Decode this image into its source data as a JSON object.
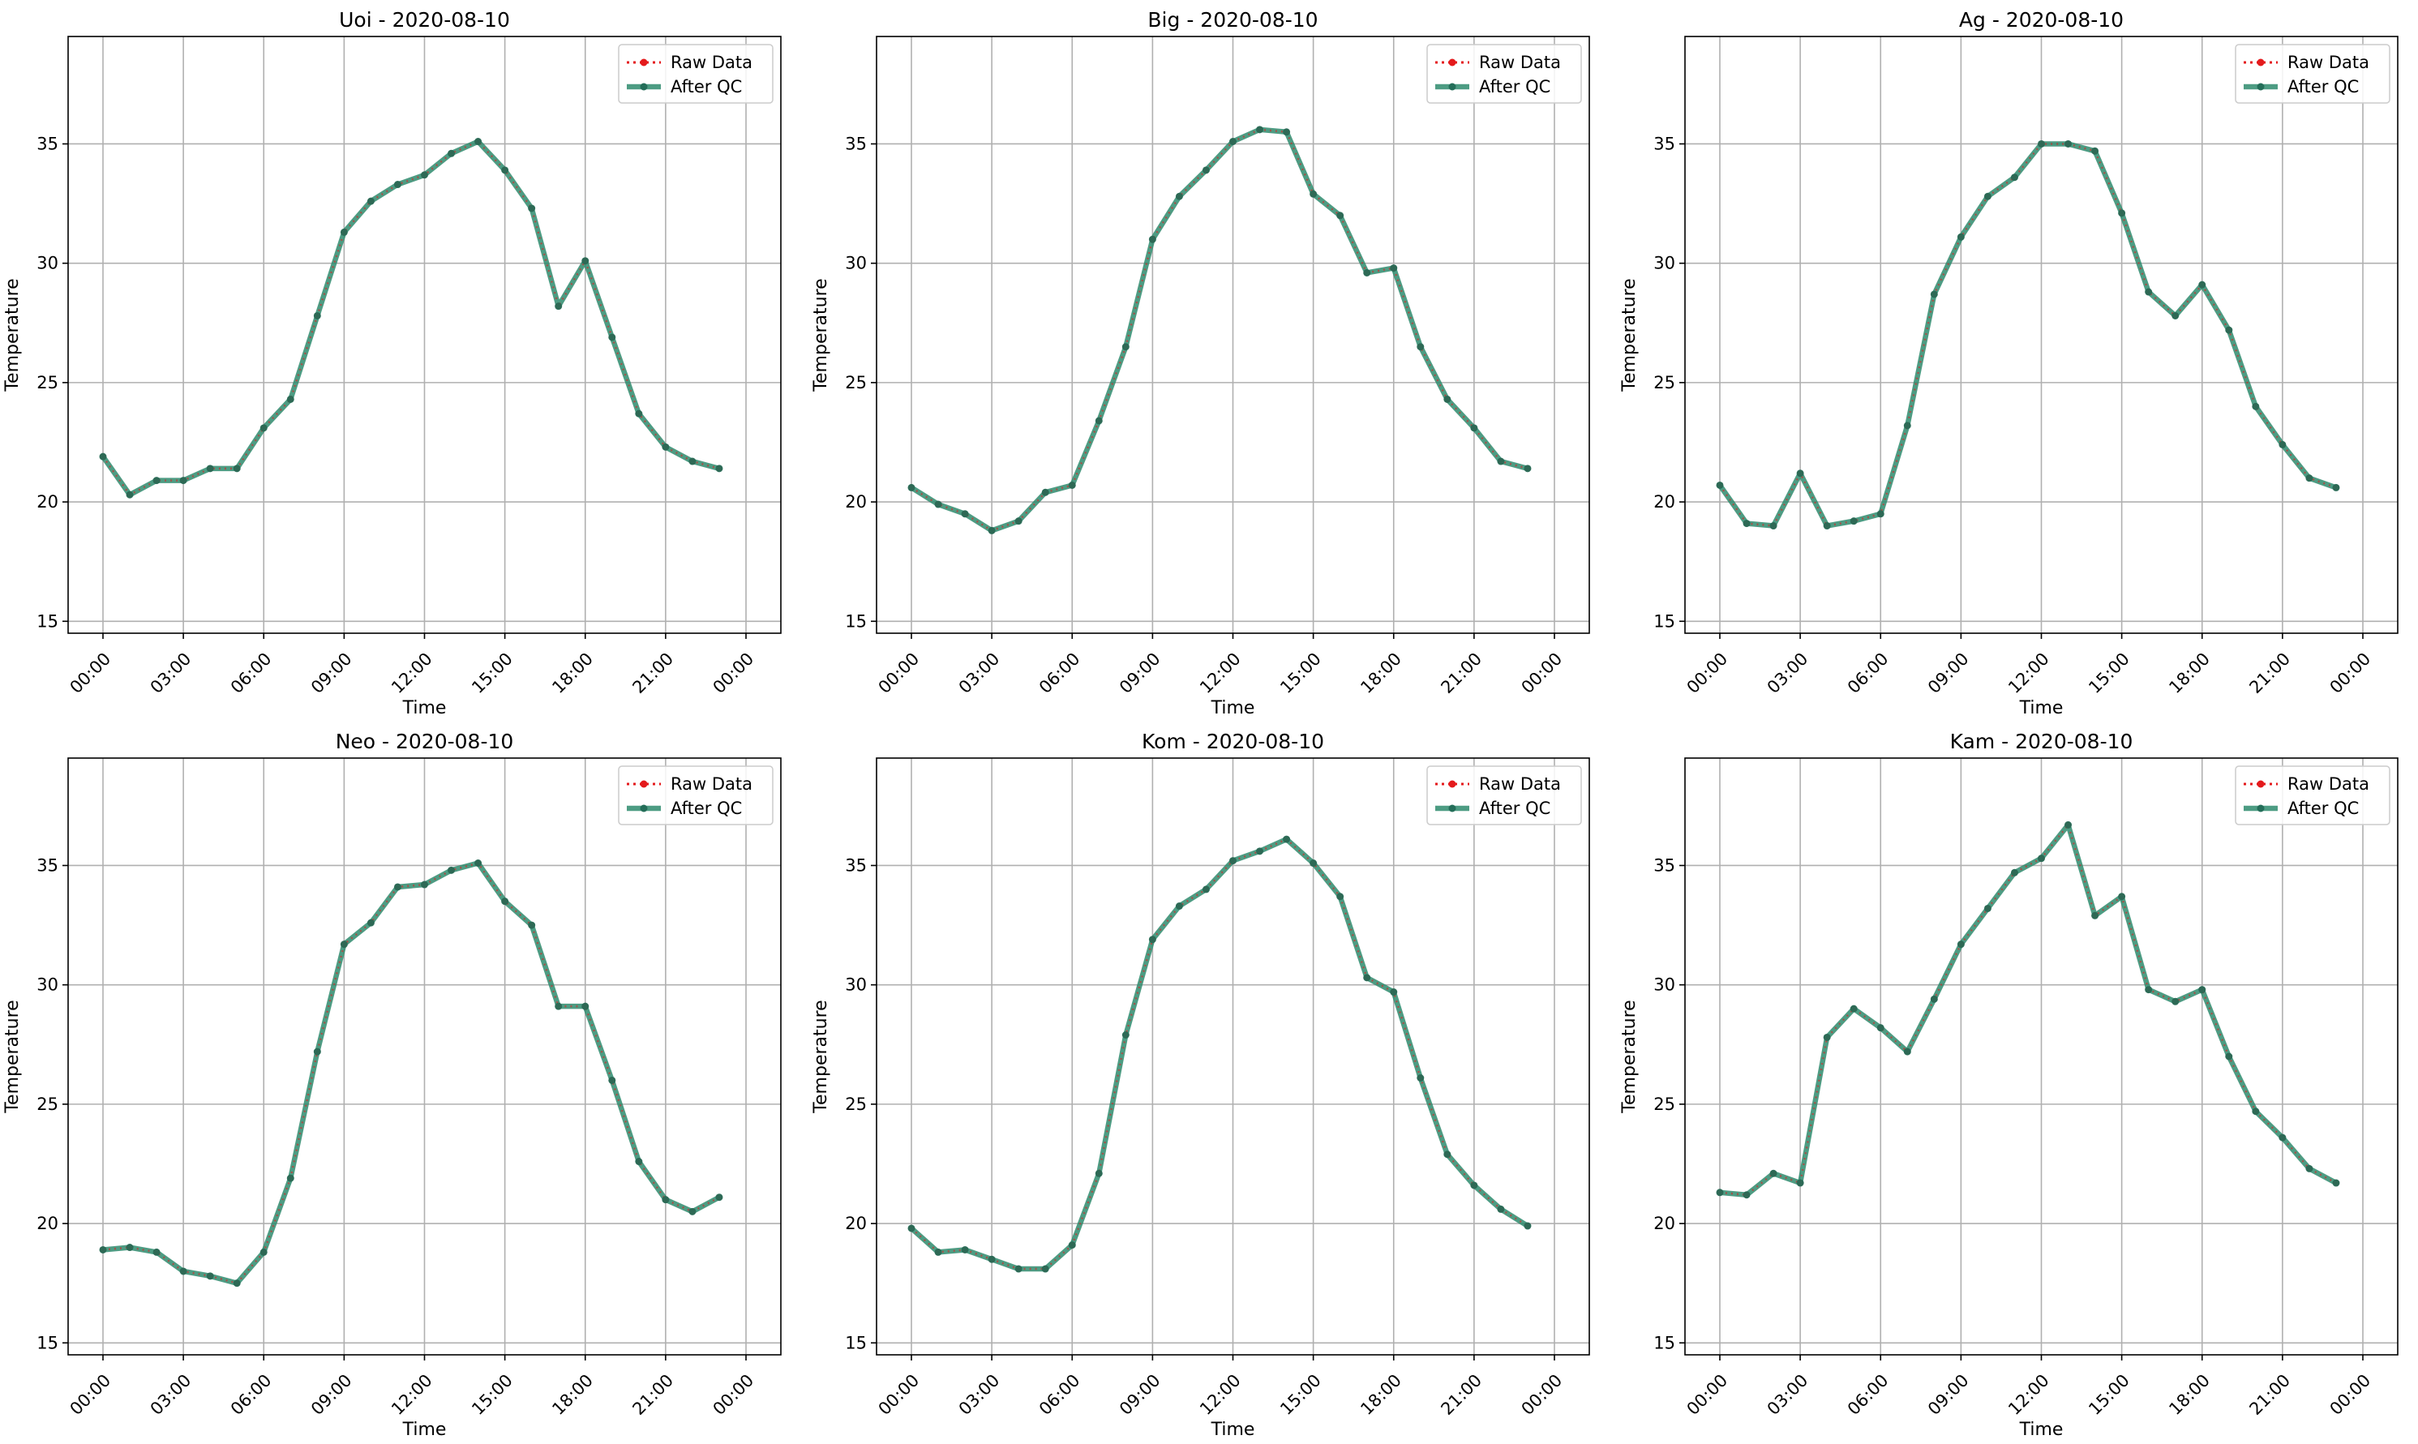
{
  "legend": {
    "raw_label": "Raw Data",
    "qc_label": "After QC"
  },
  "colors": {
    "raw": "#e41a1c",
    "qc": "#2e8b6d",
    "grid": "#b0b0b0"
  },
  "chart_data": [
    {
      "type": "line",
      "title": "Uoi - 2020-08-10",
      "xlabel": "Time",
      "ylabel": "Temperature",
      "x": [
        "00:00",
        "01:00",
        "02:00",
        "03:00",
        "04:00",
        "05:00",
        "06:00",
        "07:00",
        "08:00",
        "09:00",
        "10:00",
        "11:00",
        "12:00",
        "13:00",
        "14:00",
        "15:00",
        "16:00",
        "17:00",
        "18:00",
        "19:00",
        "20:00",
        "21:00",
        "22:00",
        "23:00"
      ],
      "xticks": [
        "00:00",
        "03:00",
        "06:00",
        "09:00",
        "12:00",
        "15:00",
        "18:00",
        "21:00",
        "00:00"
      ],
      "yticks": [
        15,
        20,
        25,
        30,
        35
      ],
      "ylim": [
        14.5,
        39.5
      ],
      "grid": true,
      "legend_position": "upper right",
      "series": [
        {
          "name": "Raw Data",
          "values": [
            21.9,
            20.3,
            20.9,
            20.9,
            21.4,
            21.4,
            23.1,
            24.3,
            27.8,
            31.3,
            32.6,
            33.3,
            33.7,
            34.6,
            35.1,
            33.9,
            32.3,
            28.2,
            30.1,
            26.9,
            23.7,
            22.3,
            21.7,
            21.4
          ]
        },
        {
          "name": "After QC",
          "values": [
            21.9,
            20.3,
            20.9,
            20.9,
            21.4,
            21.4,
            23.1,
            24.3,
            27.8,
            31.3,
            32.6,
            33.3,
            33.7,
            34.6,
            35.1,
            33.9,
            32.3,
            28.2,
            30.1,
            26.9,
            23.7,
            22.3,
            21.7,
            21.4
          ]
        }
      ]
    },
    {
      "type": "line",
      "title": "Big - 2020-08-10",
      "xlabel": "Time",
      "ylabel": "Temperature",
      "x": [
        "00:00",
        "01:00",
        "02:00",
        "03:00",
        "04:00",
        "05:00",
        "06:00",
        "07:00",
        "08:00",
        "09:00",
        "10:00",
        "11:00",
        "12:00",
        "13:00",
        "14:00",
        "15:00",
        "16:00",
        "17:00",
        "18:00",
        "19:00",
        "20:00",
        "21:00",
        "22:00",
        "23:00"
      ],
      "xticks": [
        "00:00",
        "03:00",
        "06:00",
        "09:00",
        "12:00",
        "15:00",
        "18:00",
        "21:00",
        "00:00"
      ],
      "yticks": [
        15,
        20,
        25,
        30,
        35
      ],
      "ylim": [
        14.5,
        39.5
      ],
      "grid": true,
      "legend_position": "upper right",
      "series": [
        {
          "name": "Raw Data",
          "values": [
            20.6,
            19.9,
            19.5,
            18.8,
            19.2,
            20.4,
            20.7,
            23.4,
            26.5,
            31.0,
            32.8,
            33.9,
            35.1,
            35.6,
            35.5,
            32.9,
            32.0,
            29.6,
            29.8,
            26.5,
            24.3,
            23.1,
            21.7,
            21.4
          ]
        },
        {
          "name": "After QC",
          "values": [
            20.6,
            19.9,
            19.5,
            18.8,
            19.2,
            20.4,
            20.7,
            23.4,
            26.5,
            31.0,
            32.8,
            33.9,
            35.1,
            35.6,
            35.5,
            32.9,
            32.0,
            29.6,
            29.8,
            26.5,
            24.3,
            23.1,
            21.7,
            21.4
          ]
        }
      ]
    },
    {
      "type": "line",
      "title": "Ag - 2020-08-10",
      "xlabel": "Time",
      "ylabel": "Temperature",
      "x": [
        "00:00",
        "01:00",
        "02:00",
        "03:00",
        "04:00",
        "05:00",
        "06:00",
        "07:00",
        "08:00",
        "09:00",
        "10:00",
        "11:00",
        "12:00",
        "13:00",
        "14:00",
        "15:00",
        "16:00",
        "17:00",
        "18:00",
        "19:00",
        "20:00",
        "21:00",
        "22:00",
        "23:00"
      ],
      "xticks": [
        "00:00",
        "03:00",
        "06:00",
        "09:00",
        "12:00",
        "15:00",
        "18:00",
        "21:00",
        "00:00"
      ],
      "yticks": [
        15,
        20,
        25,
        30,
        35
      ],
      "ylim": [
        14.5,
        39.5
      ],
      "grid": true,
      "legend_position": "upper right",
      "series": [
        {
          "name": "Raw Data",
          "values": [
            20.7,
            19.1,
            19.0,
            21.2,
            19.0,
            19.2,
            19.5,
            23.2,
            28.7,
            31.1,
            32.8,
            33.6,
            35.0,
            35.0,
            34.7,
            32.1,
            28.8,
            27.8,
            29.1,
            27.2,
            24.0,
            22.4,
            21.0,
            20.6
          ]
        },
        {
          "name": "After QC",
          "values": [
            20.7,
            19.1,
            19.0,
            21.2,
            19.0,
            19.2,
            19.5,
            23.2,
            28.7,
            31.1,
            32.8,
            33.6,
            35.0,
            35.0,
            34.7,
            32.1,
            28.8,
            27.8,
            29.1,
            27.2,
            24.0,
            22.4,
            21.0,
            20.6
          ]
        }
      ]
    },
    {
      "type": "line",
      "title": "Neo - 2020-08-10",
      "xlabel": "Time",
      "ylabel": "Temperature",
      "x": [
        "00:00",
        "01:00",
        "02:00",
        "03:00",
        "04:00",
        "05:00",
        "06:00",
        "07:00",
        "08:00",
        "09:00",
        "10:00",
        "11:00",
        "12:00",
        "13:00",
        "14:00",
        "15:00",
        "16:00",
        "17:00",
        "18:00",
        "19:00",
        "20:00",
        "21:00",
        "22:00",
        "23:00"
      ],
      "xticks": [
        "00:00",
        "03:00",
        "06:00",
        "09:00",
        "12:00",
        "15:00",
        "18:00",
        "21:00",
        "00:00"
      ],
      "yticks": [
        15,
        20,
        25,
        30,
        35
      ],
      "ylim": [
        14.5,
        39.5
      ],
      "grid": true,
      "legend_position": "upper right",
      "series": [
        {
          "name": "Raw Data",
          "values": [
            18.9,
            19.0,
            18.8,
            18.0,
            17.8,
            17.5,
            18.8,
            21.9,
            27.2,
            31.7,
            32.6,
            34.1,
            34.2,
            34.8,
            35.1,
            33.5,
            32.5,
            29.1,
            29.1,
            26.0,
            22.6,
            21.0,
            20.5,
            21.1
          ]
        },
        {
          "name": "After QC",
          "values": [
            18.9,
            19.0,
            18.8,
            18.0,
            17.8,
            17.5,
            18.8,
            21.9,
            27.2,
            31.7,
            32.6,
            34.1,
            34.2,
            34.8,
            35.1,
            33.5,
            32.5,
            29.1,
            29.1,
            26.0,
            22.6,
            21.0,
            20.5,
            21.1
          ]
        }
      ]
    },
    {
      "type": "line",
      "title": "Kom - 2020-08-10",
      "xlabel": "Time",
      "ylabel": "Temperature",
      "x": [
        "00:00",
        "01:00",
        "02:00",
        "03:00",
        "04:00",
        "05:00",
        "06:00",
        "07:00",
        "08:00",
        "09:00",
        "10:00",
        "11:00",
        "12:00",
        "13:00",
        "14:00",
        "15:00",
        "16:00",
        "17:00",
        "18:00",
        "19:00",
        "20:00",
        "21:00",
        "22:00",
        "23:00"
      ],
      "xticks": [
        "00:00",
        "03:00",
        "06:00",
        "09:00",
        "12:00",
        "15:00",
        "18:00",
        "21:00",
        "00:00"
      ],
      "yticks": [
        15,
        20,
        25,
        30,
        35
      ],
      "ylim": [
        14.5,
        39.5
      ],
      "grid": true,
      "legend_position": "upper right",
      "series": [
        {
          "name": "Raw Data",
          "values": [
            19.8,
            18.8,
            18.9,
            18.5,
            18.1,
            18.1,
            19.1,
            22.1,
            27.9,
            31.9,
            33.3,
            34.0,
            35.2,
            35.6,
            36.1,
            35.1,
            33.7,
            30.3,
            29.7,
            26.1,
            22.9,
            21.6,
            20.6,
            19.9
          ]
        },
        {
          "name": "After QC",
          "values": [
            19.8,
            18.8,
            18.9,
            18.5,
            18.1,
            18.1,
            19.1,
            22.1,
            27.9,
            31.9,
            33.3,
            34.0,
            35.2,
            35.6,
            36.1,
            35.1,
            33.7,
            30.3,
            29.7,
            26.1,
            22.9,
            21.6,
            20.6,
            19.9
          ]
        }
      ]
    },
    {
      "type": "line",
      "title": "Kam - 2020-08-10",
      "xlabel": "Time",
      "ylabel": "Temperature",
      "x": [
        "00:00",
        "01:00",
        "02:00",
        "03:00",
        "04:00",
        "05:00",
        "06:00",
        "07:00",
        "08:00",
        "09:00",
        "10:00",
        "11:00",
        "12:00",
        "13:00",
        "14:00",
        "15:00",
        "16:00",
        "17:00",
        "18:00",
        "19:00",
        "20:00",
        "21:00",
        "22:00",
        "23:00"
      ],
      "xticks": [
        "00:00",
        "03:00",
        "06:00",
        "09:00",
        "12:00",
        "15:00",
        "18:00",
        "21:00",
        "00:00"
      ],
      "yticks": [
        15,
        20,
        25,
        30,
        35
      ],
      "ylim": [
        14.5,
        39.5
      ],
      "grid": true,
      "legend_position": "upper right",
      "series": [
        {
          "name": "Raw Data",
          "values": [
            21.3,
            21.2,
            22.1,
            21.7,
            27.8,
            29.0,
            28.2,
            27.2,
            29.4,
            31.7,
            33.2,
            34.7,
            35.3,
            36.7,
            32.9,
            33.7,
            29.8,
            29.3,
            29.8,
            27.0,
            24.7,
            23.6,
            22.3,
            21.7
          ]
        },
        {
          "name": "After QC",
          "values": [
            21.3,
            21.2,
            22.1,
            21.7,
            27.8,
            29.0,
            28.2,
            27.2,
            29.4,
            31.7,
            33.2,
            34.7,
            35.3,
            36.7,
            32.9,
            33.7,
            29.8,
            29.3,
            29.8,
            27.0,
            24.7,
            23.6,
            22.3,
            21.7
          ]
        }
      ]
    }
  ]
}
